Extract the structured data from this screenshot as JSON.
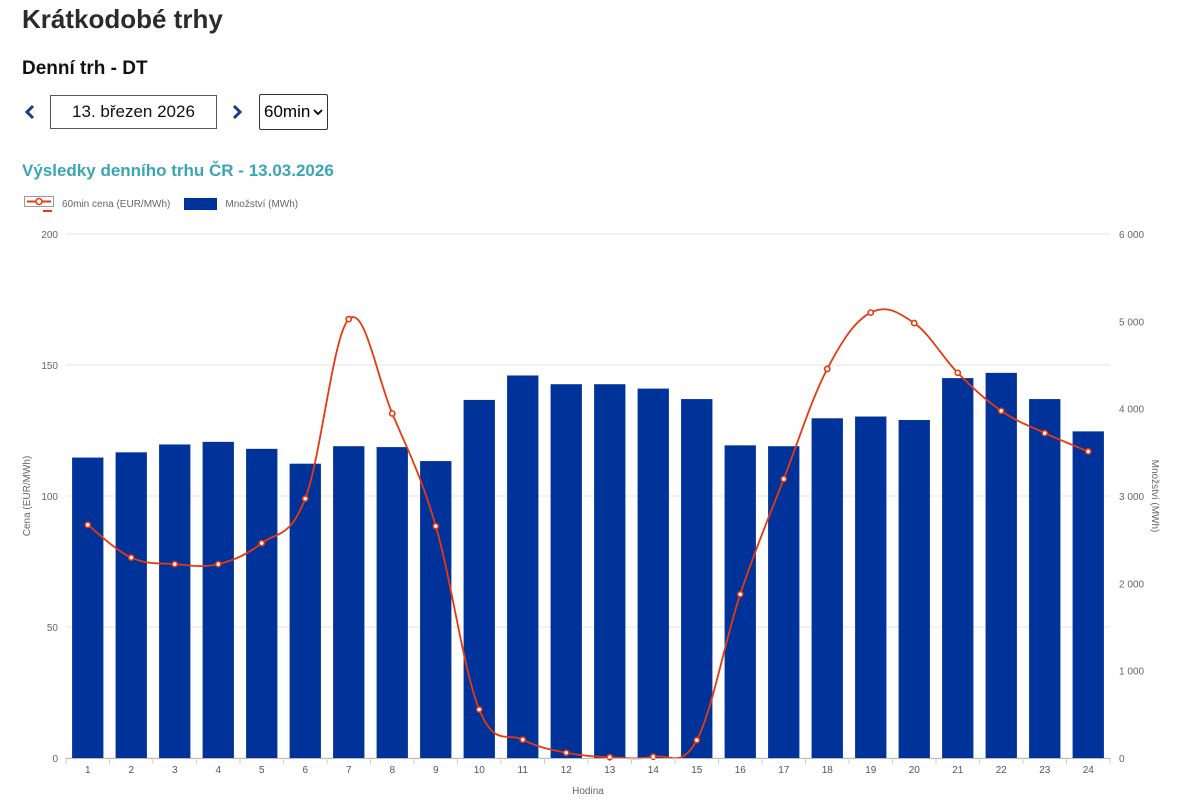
{
  "page": {
    "title": "Krátkodobé trhy",
    "section_title": "Denní trh - DT"
  },
  "controls": {
    "date_value": "13. březen 2026",
    "resolution_value": "60min"
  },
  "colors": {
    "bar": "#003399",
    "line": "#e8380d",
    "title": "#3aa6b3"
  },
  "chart_data": {
    "type": "bar+line",
    "title": "Výsledky denního trhu ČR - 13.03.2026",
    "xlabel": "Hodina",
    "ylabel_left": "Cena (EUR/MWh)",
    "ylabel_right": "Množství (MWh)",
    "ylim_left": [
      0,
      200
    ],
    "ylim_right": [
      0,
      6000
    ],
    "yticks_left": [
      "0",
      "50",
      "100",
      "150",
      "200"
    ],
    "yticks_right": [
      "0",
      "1 000",
      "2 000",
      "3 000",
      "4 000",
      "5 000",
      "6 000"
    ],
    "categories": [
      "1",
      "2",
      "3",
      "4",
      "5",
      "6",
      "7",
      "8",
      "9",
      "10",
      "11",
      "12",
      "13",
      "14",
      "15",
      "16",
      "17",
      "18",
      "19",
      "20",
      "21",
      "22",
      "23",
      "24"
    ],
    "series": [
      {
        "name": "60min cena (EUR/MWh)",
        "type": "line",
        "axis": "left",
        "values": [
          89,
          76.5,
          74,
          74,
          82,
          99,
          167.5,
          131.5,
          88.5,
          18.5,
          7,
          2,
          0.3,
          0.5,
          6.8,
          62.5,
          106.5,
          148.5,
          170,
          166,
          147,
          132.5,
          124,
          117
        ]
      },
      {
        "name": "Množství (MWh)",
        "type": "bar",
        "axis": "right",
        "values": [
          3440,
          3500,
          3590,
          3620,
          3540,
          3370,
          3570,
          3560,
          3400,
          4100,
          4380,
          4280,
          4280,
          4230,
          4110,
          3580,
          3570,
          3890,
          3910,
          3870,
          4350,
          4410,
          4110,
          3740
        ]
      }
    ],
    "grid": true,
    "legend_position": "top-left"
  }
}
